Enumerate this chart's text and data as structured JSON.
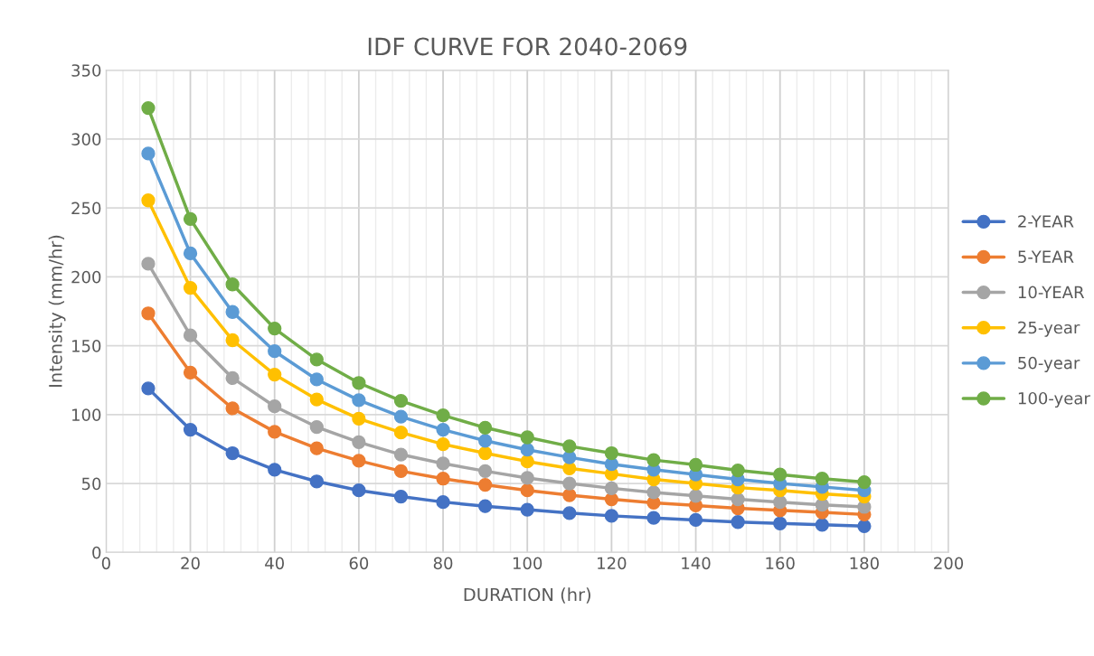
{
  "chart_data": {
    "type": "line",
    "title": "IDF CURVE FOR 2040-2069",
    "xlabel": "DURATION (hr)",
    "ylabel": "Intensity (mm/hr)",
    "x": [
      10,
      20,
      30,
      40,
      50,
      60,
      70,
      80,
      90,
      100,
      110,
      120,
      130,
      140,
      150,
      160,
      170,
      180
    ],
    "series": [
      {
        "name": "2-YEAR",
        "color": "#4472c4",
        "values": [
          119,
          89,
          72,
          60,
          51.5,
          45,
          40.5,
          36.5,
          33.5,
          31,
          28.5,
          26.5,
          25,
          23.5,
          22,
          21,
          20,
          19
        ]
      },
      {
        "name": "5-YEAR",
        "color": "#ed7d31",
        "values": [
          173.5,
          130.5,
          104.5,
          87.5,
          75.5,
          66.5,
          59,
          53.5,
          49,
          45,
          41.5,
          38.5,
          36,
          34,
          32,
          30.5,
          29,
          27.5
        ]
      },
      {
        "name": "10-YEAR",
        "color": "#a5a5a5",
        "values": [
          209.5,
          157.5,
          126.5,
          106,
          91,
          80,
          71,
          64.5,
          59,
          54,
          50,
          46.5,
          43.5,
          41,
          38.5,
          36.5,
          34.5,
          33
        ]
      },
      {
        "name": "25-year",
        "color": "#ffc000",
        "values": [
          255.5,
          192,
          154,
          129,
          111,
          97,
          87,
          78.5,
          72,
          66,
          61,
          57,
          53,
          50,
          47,
          45,
          42.5,
          40.5
        ]
      },
      {
        "name": "50-year",
        "color": "#5b9bd5",
        "values": [
          289.5,
          217,
          174.5,
          146,
          125.5,
          110.5,
          98.5,
          89,
          81,
          74.5,
          69,
          64,
          60,
          56.5,
          53,
          50,
          47.5,
          45
        ]
      },
      {
        "name": "100-year",
        "color": "#70ad47",
        "values": [
          322.5,
          242,
          194.5,
          162.5,
          140,
          123,
          110,
          99.5,
          90.5,
          83.5,
          77,
          72,
          67,
          63.5,
          59.5,
          56.5,
          53.5,
          51
        ]
      }
    ],
    "xlim": [
      0,
      200
    ],
    "xticks": [
      0,
      20,
      40,
      60,
      80,
      100,
      120,
      140,
      160,
      180,
      200
    ],
    "ylim": [
      0,
      350
    ],
    "yticks": [
      0,
      50,
      100,
      150,
      200,
      250,
      300,
      350
    ],
    "grid": true,
    "legend": "right",
    "marker": "circle",
    "line_style": "solid"
  }
}
